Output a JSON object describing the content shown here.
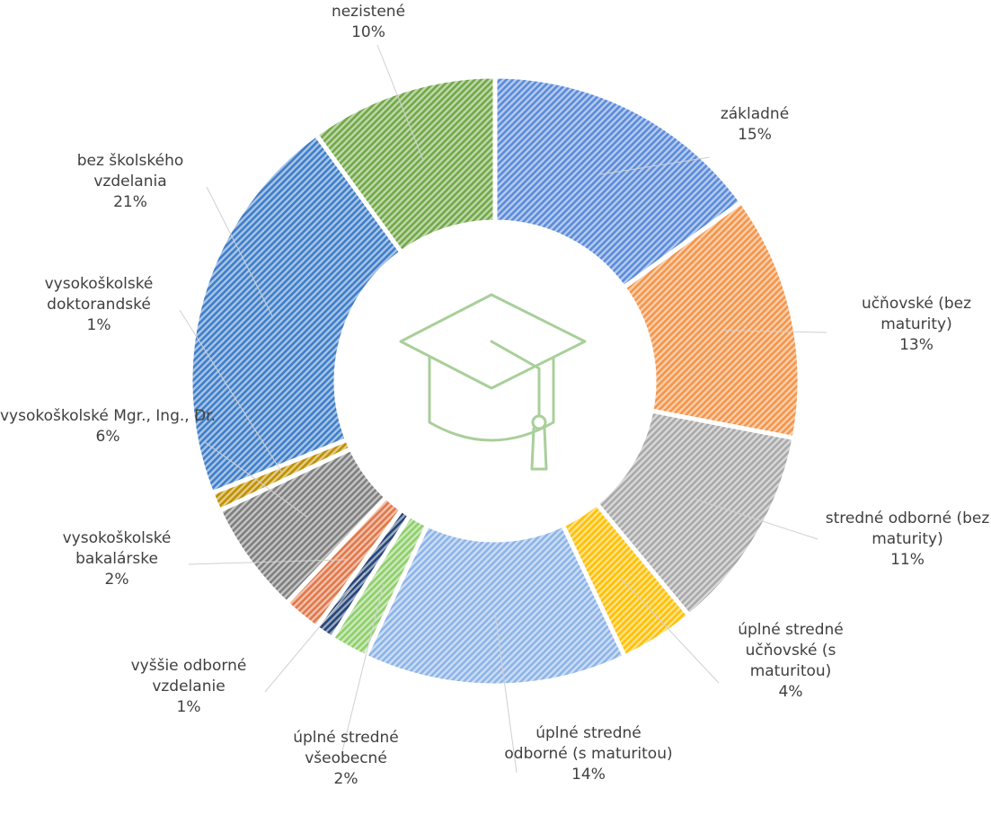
{
  "chart_data": {
    "type": "donut",
    "categories": [
      "základné",
      "učňovské (bez maturity)",
      "stredné odborné (bez maturity)",
      "úplné stredné učňovské (s maturitou)",
      "úplné stredné odborné (s maturitou)",
      "úplné stredné všeobecné",
      "vyššie odborné vzdelanie",
      "vysokoškolské bakalárske",
      "vysokoškolské Mgr., Ing., Dr.",
      "vysokoškolské doktorandské",
      "bez školského vzdelania",
      "nezistené"
    ],
    "values": [
      15,
      13,
      11,
      4,
      14,
      2,
      1,
      2,
      6,
      1,
      21,
      10
    ],
    "value_labels": [
      "15%",
      "13%",
      "11%",
      "4%",
      "14%",
      "2%",
      "1%",
      "2%",
      "6%",
      "1%",
      "21%",
      "10%"
    ],
    "colors": [
      "#5b8bd9",
      "#f4954a",
      "#a9a9a9",
      "#ffc000",
      "#8db4e8",
      "#8fcf6b",
      "#264478",
      "#e0784a",
      "#7f7f7f",
      "#bf9000",
      "#3f7ec9",
      "#72a848"
    ]
  }
}
